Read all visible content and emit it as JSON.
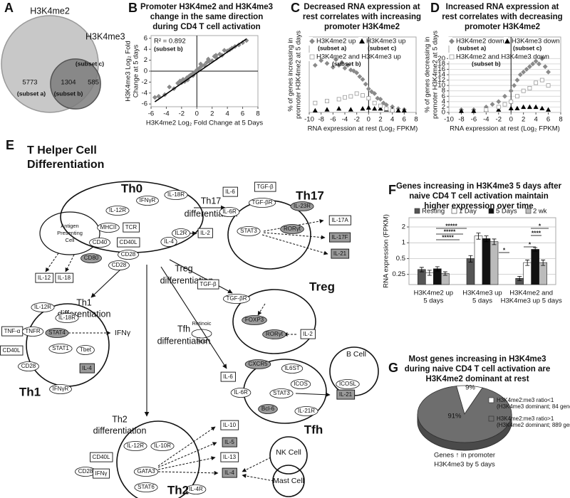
{
  "chart_data": [
    {
      "type": "venn",
      "panel": "A",
      "sets": [
        {
          "name": "H3K4me2",
          "color": "#c8c8c8"
        },
        {
          "name": "H3K4me3",
          "color": "#7c7c7c"
        }
      ],
      "regions": [
        {
          "value": 5773,
          "label": "(subset a)"
        },
        {
          "value": 1304,
          "label": "(subset b)"
        },
        {
          "value": 585,
          "label": "(subset c)"
        }
      ]
    },
    {
      "type": "scatter",
      "panel": "B",
      "title": [
        "Promoter H3K4me2 and H3K4me3",
        "change in the same direction",
        "during CD4 T cell activation"
      ],
      "xlabel": "H3K4me2 Log₂ Fold Change at 5 Days",
      "ylabel": [
        "H3K4me3 Log₂ Fold",
        "Change at 5 days"
      ],
      "annotation": [
        "R² = 0.892",
        "(subset b)"
      ],
      "xlim": [
        -6,
        8
      ],
      "xticks": [
        -6,
        -4,
        -2,
        0,
        2,
        4,
        6,
        8
      ],
      "ylim": [
        -6.5,
        6.5
      ],
      "yticks": [
        -6,
        -4,
        -2,
        0,
        2,
        4,
        6
      ],
      "fit": {
        "x": [
          -5.5,
          6.5
        ],
        "y": [
          -5.6,
          5.9
        ]
      },
      "series": [
        {
          "color": "#8a8a8a",
          "marker": "diamond",
          "x": [
            -5.5,
            -5,
            -4.2,
            -3.6,
            -3,
            -2.5,
            -2.2,
            -2,
            -1.8,
            -1.6,
            -1.5,
            -1.3,
            -1.2,
            -1,
            -0.8,
            -0.5,
            -0.2,
            0,
            0.3,
            0.6,
            1,
            1.3,
            1.6,
            2,
            2.3,
            2.6,
            3,
            3.3,
            3.6,
            4,
            4.3,
            4.6,
            5,
            5.5,
            6,
            6.5,
            -0.5,
            0.5,
            1.5,
            2.5
          ],
          "y": [
            -4.8,
            -4.6,
            -4.3,
            -2.9,
            -3.2,
            -2.2,
            -1.8,
            -2.1,
            -1.5,
            -1.9,
            -1.6,
            -1.2,
            -1.6,
            -0.9,
            -0.7,
            -0.4,
            -0.1,
            0.2,
            0.5,
            0.9,
            1.1,
            1.6,
            1.8,
            1.9,
            2.7,
            2.4,
            3.1,
            2.9,
            3.8,
            3.7,
            3.9,
            4.2,
            4.5,
            4.8,
            5.2,
            5.6,
            -0.8,
            1.3,
            2.2,
            2.9
          ]
        }
      ]
    },
    {
      "type": "scatter",
      "panel": "C",
      "title": [
        "Decreased RNA expression at",
        "rest correlates with increasing",
        "promoter H3K4me2"
      ],
      "xlabel": "RNA expression at rest (Log₂ FPKM)",
      "ylabel": [
        "% of genes increasing in",
        "promoter H3K4me2 at 5 days"
      ],
      "xlim": [
        -10,
        8
      ],
      "xticks": [
        -10,
        -8,
        -6,
        -4,
        -2,
        0,
        2,
        4,
        6,
        8
      ],
      "ylim": [
        0,
        80
      ],
      "series": [
        {
          "name": "H3K4me2 up",
          "subset": "(subset a)",
          "color": "#8a8a8a",
          "marker": "diamond",
          "x": [
            -9,
            -8,
            -7,
            -6,
            -5.5,
            -5,
            -4.5,
            -4,
            -3.5,
            -3,
            -2.5,
            -2,
            -1.5,
            -1,
            -0.5,
            0,
            0.5,
            1,
            1.5,
            2,
            2.5,
            3,
            4,
            5,
            6
          ],
          "y": [
            50,
            55,
            52,
            48,
            56,
            50,
            53,
            47,
            50,
            45,
            44,
            42,
            38,
            35,
            30,
            25,
            22,
            20,
            15,
            14,
            10,
            8,
            6,
            4,
            3
          ]
        },
        {
          "name": "H3K4me3 up",
          "subset": "(subset c)",
          "color": "#000000",
          "marker": "triangle",
          "x": [
            -9,
            -7,
            -5,
            -3,
            -1,
            0,
            1,
            2,
            3,
            4,
            5,
            6
          ],
          "y": [
            2,
            3,
            4,
            3,
            4,
            5,
            4,
            4,
            3,
            3,
            2,
            2
          ]
        },
        {
          "name": "H3K4me2 and H3K4me3 up",
          "subset": "(subset b)",
          "color": "#999999",
          "marker": "square",
          "hollow": true,
          "x": [
            -9,
            -7,
            -5,
            -4,
            -3,
            -2,
            -1,
            0,
            1,
            2,
            3,
            4
          ],
          "y": [
            10,
            12,
            14,
            16,
            17,
            20,
            18,
            15,
            10,
            7,
            4,
            2
          ]
        }
      ]
    },
    {
      "type": "scatter",
      "panel": "D",
      "title": [
        "Increased RNA expression at",
        "rest correlates with decreasing",
        "promoter H3K4me2"
      ],
      "xlabel": "RNA expression at rest (Log₂ FPKM)",
      "ylabel": [
        "% of genes decreasing in",
        "promoter H3K4me2 at 5 days"
      ],
      "xlim": [
        -10,
        8
      ],
      "xticks": [
        -10,
        -8,
        -6,
        -4,
        -2,
        0,
        2,
        4,
        6,
        8
      ],
      "ylim": [
        0,
        28
      ],
      "yticks": [
        0,
        2,
        4,
        6,
        8,
        10,
        12,
        14,
        16,
        18,
        20
      ],
      "grid": true,
      "series": [
        {
          "name": "H3K4me2 down",
          "subset": "(subset a)",
          "color": "#8a8a8a",
          "marker": "diamond",
          "x": [
            -8,
            -6,
            -4,
            -3,
            -2,
            -1,
            0,
            0.5,
            1,
            1.5,
            2,
            2.5,
            3,
            3.5,
            4,
            4.5,
            5,
            5.5,
            6
          ],
          "y": [
            1,
            1,
            2,
            3,
            4,
            6,
            8,
            10,
            12,
            14,
            15,
            16,
            17,
            18,
            19,
            18,
            20,
            17,
            15
          ]
        },
        {
          "name": "H3K4me3 down",
          "subset": "(subset c)",
          "color": "#000000",
          "marker": "triangle",
          "x": [
            -8,
            -6,
            -4,
            -2,
            0,
            1,
            2,
            3,
            4,
            5,
            6
          ],
          "y": [
            0.5,
            0.5,
            1,
            1,
            1.5,
            1.5,
            2,
            2,
            2,
            1.5,
            1
          ]
        },
        {
          "name": "H3K4me2 and H3K4me3 down",
          "subset": "(subset b)",
          "color": "#999999",
          "marker": "square",
          "hollow": true,
          "x": [
            -4,
            -2,
            -1,
            0,
            1,
            2,
            3,
            4,
            5,
            6
          ],
          "y": [
            1,
            2,
            3,
            4,
            6,
            8,
            9,
            11,
            12,
            10
          ]
        }
      ]
    },
    {
      "type": "bar",
      "panel": "F",
      "title": [
        "Genes increasing in H3K4me3 5 days after",
        "naive CD4 T cell activation maintain",
        "higher expression over time"
      ],
      "ylabel": "RNA expression (FPKM)",
      "log_scale": true,
      "ylim": [
        0.16,
        3
      ],
      "yticks": [
        0.25,
        0.5,
        1,
        2
      ],
      "grid": true,
      "categories": [
        [
          "H3K4me2 up",
          "5 days"
        ],
        [
          "H3K4me3 up",
          "5 days"
        ],
        [
          "H3K4me2 and",
          "H3K4me3 up 5 days"
        ]
      ],
      "series": [
        {
          "name": "Resting",
          "color": "#555555",
          "values": [
            0.31,
            0.5,
            0.21
          ],
          "errors": [
            0.03,
            0.07,
            0.02
          ]
        },
        {
          "name": "1 Day",
          "color": "#ffffff",
          "values": [
            0.27,
            1.35,
            0.42
          ],
          "errors": [
            0.03,
            0.18,
            0.05
          ]
        },
        {
          "name": "5 Days",
          "color": "#111111",
          "values": [
            0.32,
            1.2,
            0.75
          ],
          "errors": [
            0.03,
            0.15,
            0.06
          ]
        },
        {
          "name": "2 wk",
          "color": "#bbbbbb",
          "values": [
            0.26,
            1.05,
            0.42
          ],
          "errors": [
            0.02,
            0.13,
            0.05
          ]
        }
      ],
      "significance": [
        "*****",
        "*****",
        "*****",
        "*",
        "****",
        "*",
        "*"
      ]
    },
    {
      "type": "pie",
      "panel": "G",
      "title": [
        "Most genes increasing in H3K4me3",
        "during naive CD4 T cell activation are",
        "H3K4me2 dominant at rest"
      ],
      "categories": [
        [
          "H3K4me2:me3 ratio<1",
          "(H3K4me3 dominant; 84 genes)"
        ],
        [
          "H3K4me2:me3 ratio>1",
          "(H3K4me2 dominant; 889 genes)"
        ]
      ],
      "values": [
        9,
        91
      ],
      "value_labels": [
        "9%",
        "91%"
      ],
      "colors": [
        "#ffffff",
        "#6e6e6e"
      ],
      "caption": [
        "Genes ↑ in promoter",
        "H3K4me3 by 5 days"
      ]
    }
  ],
  "diagram": {
    "panel": "E",
    "title": [
      "T Helper Cell",
      "Differentiation"
    ],
    "labels": [
      "Th0",
      "Antigen",
      "Presenting",
      "Cell",
      "IFNγR",
      "IL-18R",
      "IL-12R",
      "MHCII",
      "TCR",
      "CD40",
      "CD40L",
      "CD80",
      "CD28",
      "IL-4",
      "CD28",
      "IL2R",
      "IL-2",
      "Th1",
      "differentiation",
      "IL-12",
      "IL-18",
      "IL-12R",
      "IL-18R",
      "TNF-α",
      "TNFR",
      "STAT4",
      "IFNγ",
      "CD40L",
      "STAT1",
      "Tbet",
      "CD28",
      "IL-4",
      "IFNγR",
      "Th1",
      "Th17",
      "differentiation",
      "IL-6",
      "TGF-β",
      "Th17",
      "TGF-βR",
      "IL-6R",
      "IL-23R",
      "STAT3",
      "RORγt",
      "IL-17A",
      "IL-17F",
      "IL-21",
      "Treg",
      "differentiation",
      "TGF-β",
      "TGF-βR",
      "Treg",
      "FOXP3",
      "Retinoic",
      "Acid",
      "RORγt",
      "IL-2",
      "Tfh",
      "differentiation",
      "B Cell",
      "CXCR5",
      "IL6ST",
      "ICOS",
      "ICOSL",
      "IL-6",
      "IL-6R",
      "STAT3",
      "IL-21",
      "Bcl-6",
      "IL-21R",
      "Tfh",
      "Th2",
      "differentiation",
      "IL-10",
      "IL-5",
      "IL-12R",
      "IL-10R",
      "IL-13",
      "NK Cell",
      "CD40L",
      "CD28",
      "IFNγ",
      "GATA3",
      "IL-4",
      "STAT6",
      "IL-4R",
      "Mast Cell",
      "Th2"
    ]
  }
}
